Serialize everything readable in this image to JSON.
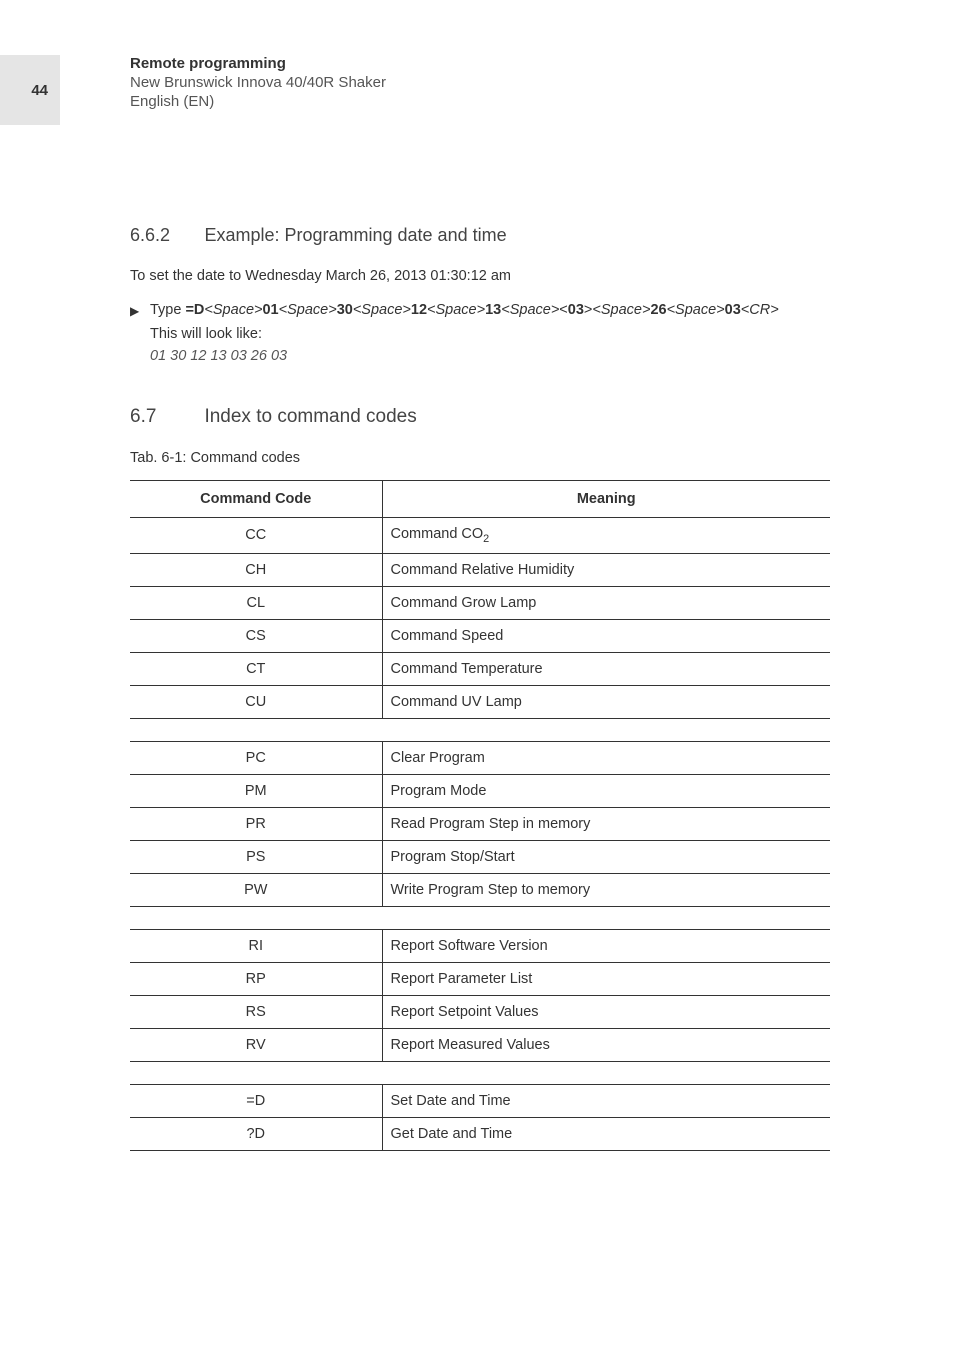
{
  "page": {
    "number": "44",
    "header_title": "Remote programming",
    "header_line2": "New Brunswick Innova 40/40R Shaker",
    "header_line3": "English (EN)"
  },
  "sec1": {
    "number": "6.6.2",
    "title": "Example: Programming date and time",
    "intro": "To set the date to Wednesday March 26, 2013 01:30:12 am",
    "bullet_prefix": "Type ",
    "cmd_parts": [
      {
        "t": "b",
        "v": "=D"
      },
      {
        "t": "i",
        "v": "<Space>"
      },
      {
        "t": "b",
        "v": "01"
      },
      {
        "t": "i",
        "v": "<Space>"
      },
      {
        "t": "b",
        "v": "30"
      },
      {
        "t": "i",
        "v": "<Space>"
      },
      {
        "t": "b",
        "v": "12"
      },
      {
        "t": "i",
        "v": "<Space>"
      },
      {
        "t": "b",
        "v": "13"
      },
      {
        "t": "i",
        "v": "<Space>"
      },
      {
        "t": "n",
        "v": "<"
      },
      {
        "t": "b",
        "v": "03"
      },
      {
        "t": "n",
        "v": ">"
      },
      {
        "t": "i",
        "v": "<Space>"
      },
      {
        "t": "b",
        "v": "26"
      },
      {
        "t": "i",
        "v": "<Space>"
      },
      {
        "t": "b",
        "v": "03"
      },
      {
        "t": "i",
        "v": "<CR>"
      }
    ],
    "result_label": "This will look like:",
    "result_value": "01 30 12 13 03 26 03"
  },
  "sec2": {
    "number": "6.7",
    "title": "Index to command codes",
    "caption": "Tab. 6-1: Command codes",
    "col1": "Command Code",
    "col2": "Meaning",
    "groups": [
      [
        {
          "code": "CC",
          "meaning_html": "Command CO<sub>2</sub>"
        },
        {
          "code": "CH",
          "meaning": "Command Relative Humidity"
        },
        {
          "code": "CL",
          "meaning": "Command Grow Lamp"
        },
        {
          "code": "CS",
          "meaning": "Command Speed"
        },
        {
          "code": "CT",
          "meaning": "Command Temperature"
        },
        {
          "code": "CU",
          "meaning": "Command UV Lamp"
        }
      ],
      [
        {
          "code": "PC",
          "meaning": "Clear Program"
        },
        {
          "code": "PM",
          "meaning": "Program Mode"
        },
        {
          "code": "PR",
          "meaning": "Read Program Step in memory"
        },
        {
          "code": "PS",
          "meaning": "Program Stop/Start"
        },
        {
          "code": "PW",
          "meaning": "Write Program Step to memory"
        }
      ],
      [
        {
          "code": "RI",
          "meaning": "Report Software Version"
        },
        {
          "code": "RP",
          "meaning": "Report Parameter List"
        },
        {
          "code": "RS",
          "meaning": "Report Setpoint Values"
        },
        {
          "code": "RV",
          "meaning": "Report Measured Values"
        }
      ],
      [
        {
          "code": "=D",
          "meaning": "Set Date and Time"
        },
        {
          "code": "?D",
          "meaning": "Get Date and Time"
        }
      ]
    ]
  }
}
